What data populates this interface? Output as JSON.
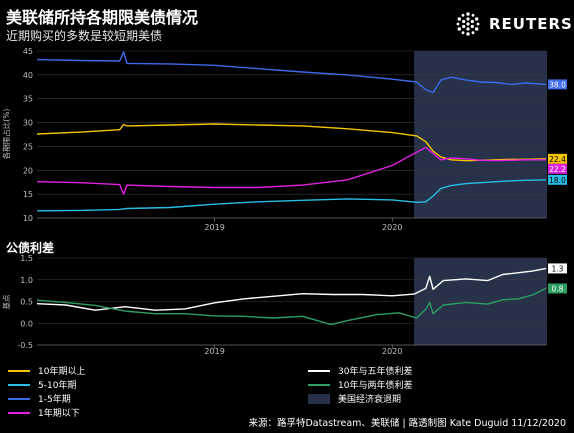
{
  "header": {
    "title": "美联储所持各期限美债情况",
    "subtitle": "近期购买的多数是较短期美债",
    "logo_text": "REUTERS"
  },
  "source": "来源：路孚特Datastream、美联储 | 路透制图 Kate Duguid 11/12/2020",
  "colors": {
    "background": "#000000",
    "recession": "#27314a",
    "grid": "#3a3a3a",
    "axis": "#bfbfbf",
    "y10plus": "#f5c400",
    "y5to10": "#29bde5",
    "y1to5": "#3d6ae8",
    "y1less": "#e020e0",
    "s30v5": "#ffffff",
    "s10v2": "#2e9e63"
  },
  "legend": {
    "items": [
      {
        "label": "10年期以上",
        "color": "#f5c400",
        "kind": "line"
      },
      {
        "label": "5-10年期",
        "color": "#29bde5",
        "kind": "line"
      },
      {
        "label": "1-5年期",
        "color": "#3d6ae8",
        "kind": "line"
      },
      {
        "label": "1年期以下",
        "color": "#e020e0",
        "kind": "line"
      },
      {
        "label": "30年与五年债利差",
        "color": "#ffffff",
        "kind": "line"
      },
      {
        "label": "10年与两年债利差",
        "color": "#2e9e63",
        "kind": "line"
      },
      {
        "label": "美国经济衰退期",
        "color": "#27314a",
        "kind": "box"
      }
    ]
  },
  "chart_data": [
    {
      "type": "line",
      "title": "",
      "ylabel": "各期限占比(%)",
      "xlabel": "",
      "ylim": [
        10,
        45
      ],
      "yticks": [
        10,
        15,
        20,
        25,
        30,
        35,
        40,
        45
      ],
      "xlim": [
        "2018-01-01",
        "2020-11-12"
      ],
      "xticks": [
        {
          "date": "2019-01-01",
          "label": "2019"
        },
        {
          "date": "2020-01-01",
          "label": "2020"
        }
      ],
      "grid": true,
      "recession": [
        "2020-02-15",
        "2020-11-12"
      ],
      "end_labels": [
        {
          "series": "1-5年期",
          "value": "38.0"
        },
        {
          "series": "10年期以上",
          "value": "22.4"
        },
        {
          "series": "1年期以下",
          "value": "22.2"
        },
        {
          "series": "5-10年期",
          "value": "18.0"
        }
      ],
      "series": [
        {
          "name": "1-5年期",
          "color": "#3d6ae8",
          "points": [
            [
              "2018-01-01",
              43.2
            ],
            [
              "2018-04-01",
              43.0
            ],
            [
              "2018-06-20",
              42.9
            ],
            [
              "2018-06-28",
              44.8
            ],
            [
              "2018-07-05",
              42.4
            ],
            [
              "2018-10-01",
              42.3
            ],
            [
              "2019-01-01",
              42.0
            ],
            [
              "2019-04-01",
              41.3
            ],
            [
              "2019-07-01",
              40.6
            ],
            [
              "2019-10-01",
              40.0
            ],
            [
              "2020-01-01",
              39.1
            ],
            [
              "2020-02-20",
              38.5
            ],
            [
              "2020-03-10",
              36.9
            ],
            [
              "2020-03-25",
              36.3
            ],
            [
              "2020-04-10",
              38.9
            ],
            [
              "2020-05-01",
              39.5
            ],
            [
              "2020-06-01",
              38.9
            ],
            [
              "2020-07-01",
              38.5
            ],
            [
              "2020-08-01",
              38.4
            ],
            [
              "2020-09-01",
              38.0
            ],
            [
              "2020-10-01",
              38.3
            ],
            [
              "2020-11-12",
              38.0
            ]
          ]
        },
        {
          "name": "10年期以上",
          "color": "#f5c400",
          "points": [
            [
              "2018-01-01",
              27.6
            ],
            [
              "2018-04-01",
              28.0
            ],
            [
              "2018-06-20",
              28.5
            ],
            [
              "2018-06-28",
              29.6
            ],
            [
              "2018-07-05",
              29.3
            ],
            [
              "2018-10-01",
              29.5
            ],
            [
              "2019-01-01",
              29.7
            ],
            [
              "2019-04-01",
              29.5
            ],
            [
              "2019-07-01",
              29.3
            ],
            [
              "2019-10-01",
              28.7
            ],
            [
              "2020-01-01",
              27.9
            ],
            [
              "2020-02-20",
              27.2
            ],
            [
              "2020-03-10",
              26.0
            ],
            [
              "2020-03-25",
              24.0
            ],
            [
              "2020-04-10",
              22.8
            ],
            [
              "2020-05-01",
              22.2
            ],
            [
              "2020-06-01",
              22.0
            ],
            [
              "2020-07-01",
              22.1
            ],
            [
              "2020-08-01",
              22.2
            ],
            [
              "2020-09-01",
              22.3
            ],
            [
              "2020-10-01",
              22.3
            ],
            [
              "2020-11-12",
              22.4
            ]
          ]
        },
        {
          "name": "1年期以下",
          "color": "#e020e0",
          "points": [
            [
              "2018-01-01",
              17.6
            ],
            [
              "2018-04-01",
              17.4
            ],
            [
              "2018-06-20",
              17.0
            ],
            [
              "2018-06-28",
              15.0
            ],
            [
              "2018-07-05",
              16.9
            ],
            [
              "2018-10-01",
              16.6
            ],
            [
              "2019-01-01",
              16.4
            ],
            [
              "2019-04-01",
              16.4
            ],
            [
              "2019-07-01",
              16.9
            ],
            [
              "2019-10-01",
              18.0
            ],
            [
              "2020-01-01",
              21.0
            ],
            [
              "2020-02-20",
              23.8
            ],
            [
              "2020-03-10",
              24.8
            ],
            [
              "2020-03-25",
              23.5
            ],
            [
              "2020-04-10",
              22.2
            ],
            [
              "2020-05-01",
              22.6
            ],
            [
              "2020-06-01",
              22.4
            ],
            [
              "2020-07-01",
              22.1
            ],
            [
              "2020-08-01",
              22.0
            ],
            [
              "2020-09-01",
              22.1
            ],
            [
              "2020-10-01",
              22.2
            ],
            [
              "2020-11-12",
              22.2
            ]
          ]
        },
        {
          "name": "5-10年期",
          "color": "#29bde5",
          "points": [
            [
              "2018-01-01",
              11.5
            ],
            [
              "2018-04-01",
              11.6
            ],
            [
              "2018-06-20",
              11.8
            ],
            [
              "2018-06-28",
              11.9
            ],
            [
              "2018-07-05",
              12.0
            ],
            [
              "2018-10-01",
              12.2
            ],
            [
              "2019-01-01",
              12.9
            ],
            [
              "2019-04-01",
              13.4
            ],
            [
              "2019-07-01",
              13.7
            ],
            [
              "2019-10-01",
              14.0
            ],
            [
              "2020-01-01",
              13.8
            ],
            [
              "2020-02-20",
              13.3
            ],
            [
              "2020-03-10",
              13.4
            ],
            [
              "2020-03-25",
              14.6
            ],
            [
              "2020-04-10",
              16.2
            ],
            [
              "2020-05-01",
              16.8
            ],
            [
              "2020-06-01",
              17.2
            ],
            [
              "2020-07-01",
              17.4
            ],
            [
              "2020-08-01",
              17.6
            ],
            [
              "2020-09-01",
              17.8
            ],
            [
              "2020-10-01",
              17.9
            ],
            [
              "2020-11-12",
              18.0
            ]
          ]
        }
      ]
    },
    {
      "type": "line",
      "title": "公债利差",
      "ylabel": "基点",
      "xlabel": "",
      "ylim": [
        -0.5,
        1.5
      ],
      "yticks": [
        -0.5,
        0.0,
        0.5,
        1.0,
        1.5
      ],
      "ytick_labels": [
        "-0.5",
        "0.0",
        "0.5",
        "1.0",
        "1.5"
      ],
      "xlim": [
        "2018-01-01",
        "2020-11-12"
      ],
      "xticks": [
        {
          "date": "2019-01-01",
          "label": "2019"
        },
        {
          "date": "2020-01-01",
          "label": "2020"
        }
      ],
      "grid": true,
      "recession": [
        "2020-02-15",
        "2020-11-12"
      ],
      "end_labels": [
        {
          "series": "30年与五年债利差",
          "value": "1.3"
        },
        {
          "series": "10年与两年债利差",
          "value": "0.8"
        }
      ],
      "series": [
        {
          "name": "30年与五年债利差",
          "color": "#ffffff",
          "points": [
            [
              "2018-01-01",
              0.45
            ],
            [
              "2018-03-01",
              0.42
            ],
            [
              "2018-05-01",
              0.3
            ],
            [
              "2018-07-01",
              0.38
            ],
            [
              "2018-09-01",
              0.3
            ],
            [
              "2018-11-01",
              0.33
            ],
            [
              "2019-01-01",
              0.47
            ],
            [
              "2019-03-01",
              0.56
            ],
            [
              "2019-05-01",
              0.62
            ],
            [
              "2019-07-01",
              0.68
            ],
            [
              "2019-09-01",
              0.66
            ],
            [
              "2019-11-01",
              0.66
            ],
            [
              "2020-01-01",
              0.63
            ],
            [
              "2020-02-15",
              0.67
            ],
            [
              "2020-03-10",
              0.8
            ],
            [
              "2020-03-18",
              1.08
            ],
            [
              "2020-03-25",
              0.78
            ],
            [
              "2020-04-15",
              0.98
            ],
            [
              "2020-06-01",
              1.02
            ],
            [
              "2020-07-15",
              0.98
            ],
            [
              "2020-08-15",
              1.12
            ],
            [
              "2020-09-15",
              1.16
            ],
            [
              "2020-10-15",
              1.2
            ],
            [
              "2020-11-12",
              1.26
            ]
          ]
        },
        {
          "name": "10年与两年债利差",
          "color": "#2e9e63",
          "points": [
            [
              "2018-01-01",
              0.53
            ],
            [
              "2018-03-01",
              0.48
            ],
            [
              "2018-05-01",
              0.41
            ],
            [
              "2018-07-01",
              0.28
            ],
            [
              "2018-09-01",
              0.22
            ],
            [
              "2018-11-01",
              0.22
            ],
            [
              "2019-01-01",
              0.17
            ],
            [
              "2019-03-01",
              0.16
            ],
            [
              "2019-05-01",
              0.12
            ],
            [
              "2019-07-01",
              0.16
            ],
            [
              "2019-08-28",
              -0.03
            ],
            [
              "2019-10-01",
              0.06
            ],
            [
              "2019-12-01",
              0.2
            ],
            [
              "2020-01-15",
              0.24
            ],
            [
              "2020-02-20",
              0.12
            ],
            [
              "2020-03-10",
              0.32
            ],
            [
              "2020-03-18",
              0.48
            ],
            [
              "2020-03-25",
              0.22
            ],
            [
              "2020-04-15",
              0.42
            ],
            [
              "2020-06-01",
              0.48
            ],
            [
              "2020-07-15",
              0.44
            ],
            [
              "2020-08-15",
              0.54
            ],
            [
              "2020-09-15",
              0.56
            ],
            [
              "2020-10-15",
              0.65
            ],
            [
              "2020-11-12",
              0.8
            ]
          ]
        }
      ]
    }
  ]
}
